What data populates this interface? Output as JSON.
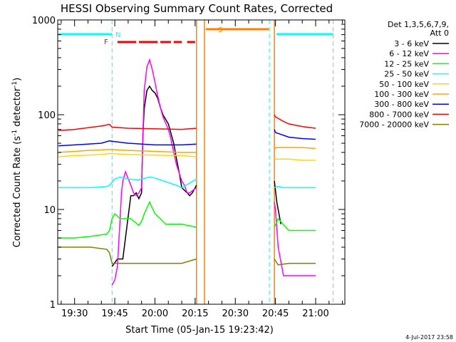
{
  "chart_data": {
    "type": "line",
    "title": "HESSI Observing Summary Count Rates, Corrected",
    "xlabel": "Start Time (05-Jan-15 19:23:42)",
    "ylabel": "Corrected Count Rate (s⁻¹ detector⁻¹)",
    "ylabel_parts": [
      "Corrected Count Rate (s",
      "-1",
      " detector",
      "-1",
      ")"
    ],
    "y_scale": "log",
    "ylim": [
      1,
      1000
    ],
    "xlim_minutes": [
      -6.3,
      100.9
    ],
    "x_ticks": [
      {
        "label": "19:30",
        "min": 0
      },
      {
        "label": "19:45",
        "min": 15
      },
      {
        "label": "20:00",
        "min": 30
      },
      {
        "label": "20:15",
        "min": 45
      },
      {
        "label": "20:30",
        "min": 60
      },
      {
        "label": "20:45",
        "min": 75
      },
      {
        "label": "21:00",
        "min": 90
      }
    ],
    "y_ticks": [
      {
        "label": "1",
        "value": 1
      },
      {
        "label": "10",
        "value": 10
      },
      {
        "label": "100",
        "value": 100
      },
      {
        "label": "1000",
        "value": 1000
      }
    ],
    "legend_header": [
      "Det 1,3,5,6,7,9,",
      "Att 0"
    ],
    "legend_position": "right",
    "series": [
      {
        "name": "3 - 6 keV",
        "color": "#000000",
        "x": [
          14,
          16,
          18,
          19,
          21,
          22,
          23,
          24,
          25,
          25.5,
          26,
          27,
          28,
          29,
          30,
          31,
          32,
          33,
          35,
          37,
          38,
          39,
          40,
          41,
          42,
          43,
          44,
          45.5,
          74.6,
          75.5,
          77
        ],
        "y": [
          2.5,
          3,
          3,
          5,
          14,
          14,
          15,
          13,
          15,
          60,
          115,
          180,
          200,
          180,
          170,
          150,
          120,
          100,
          80,
          50,
          35,
          25,
          17,
          16,
          15,
          14,
          15,
          18,
          20,
          12,
          7
        ]
      },
      {
        "name": "6 - 12 keV",
        "color": "#ff00ff",
        "x": [
          14,
          15,
          16,
          17,
          17.5,
          18,
          19,
          21,
          22,
          23,
          24,
          25,
          25.5,
          26,
          27,
          28,
          29,
          30,
          31,
          32,
          33,
          35,
          36,
          37,
          38,
          40,
          41,
          42,
          43,
          45.5,
          74.6,
          75,
          76,
          78,
          80,
          85,
          90
        ],
        "y": [
          1.6,
          1.8,
          2.5,
          8,
          15,
          20,
          25,
          18,
          15,
          14,
          15,
          17,
          60,
          180,
          320,
          380,
          300,
          220,
          160,
          120,
          95,
          70,
          55,
          40,
          30,
          20,
          18,
          15,
          15,
          17,
          12,
          10,
          4,
          2,
          2,
          2,
          2
        ]
      },
      {
        "name": "12 - 25 keV",
        "color": "#00ff00",
        "x": [
          -6,
          0,
          6,
          12,
          13,
          14,
          15,
          17,
          19,
          21,
          24,
          25,
          26,
          28,
          30,
          32,
          34,
          40,
          45.5,
          74.6,
          76,
          80,
          85,
          90
        ],
        "y": [
          5,
          5,
          5.2,
          5.5,
          6,
          8,
          9,
          8,
          8,
          8,
          6.8,
          7.5,
          9,
          12,
          9,
          8,
          7,
          7,
          6.5,
          6.5,
          8,
          6,
          6,
          6
        ]
      },
      {
        "name": "25 - 50 keV",
        "color": "#00ffff",
        "x": [
          -6,
          0,
          6,
          12,
          13,
          15,
          17,
          20,
          24,
          25,
          28,
          30,
          32,
          38,
          40,
          43,
          45.5,
          74.6,
          76,
          78,
          80,
          85,
          90
        ],
        "y": [
          17,
          17,
          17,
          17.5,
          18,
          21,
          22,
          21,
          20.5,
          21,
          22,
          21.5,
          20.5,
          18,
          17,
          19,
          21,
          17,
          17.5,
          17,
          17,
          17,
          17
        ]
      },
      {
        "name": "50 - 100 keV",
        "color": "#ffd700",
        "x": [
          -6,
          0,
          5,
          10,
          13,
          20,
          30,
          40,
          45.5,
          74.6,
          75,
          80,
          85,
          90
        ],
        "y": [
          36,
          37,
          37.5,
          38,
          39,
          38,
          37.5,
          37,
          36,
          35,
          34,
          34,
          33,
          33
        ]
      },
      {
        "name": "100 - 300 keV",
        "color": "#ffa500",
        "x": [
          -6,
          0,
          5,
          10,
          13,
          20,
          30,
          40,
          45.5,
          74.6,
          75,
          80,
          85,
          90
        ],
        "y": [
          40,
          41,
          42,
          42.5,
          43,
          42,
          41,
          40,
          40,
          42,
          45,
          45,
          45,
          44
        ]
      },
      {
        "name": "300 - 800 keV",
        "color": "#0000ff",
        "x": [
          -6,
          0,
          5,
          10,
          13,
          15,
          20,
          30,
          40,
          45.5,
          74.6,
          75,
          80,
          85,
          90
        ],
        "y": [
          47,
          48,
          49,
          50,
          53,
          52,
          50,
          48,
          48,
          49,
          70,
          65,
          58,
          56,
          55
        ]
      },
      {
        "name": "800 - 7000 keV",
        "color": "#ff0000",
        "x": [
          -6,
          0,
          5,
          10,
          13,
          14,
          20,
          30,
          40,
          45.5,
          74.6,
          75,
          78,
          80,
          85,
          90
        ],
        "y": [
          68,
          70,
          73,
          76,
          79,
          74,
          72,
          71,
          70,
          72,
          100,
          95,
          85,
          80,
          75,
          72
        ]
      },
      {
        "name": "7000 - 20000 keV",
        "color": "#808000",
        "x": [
          -6,
          0,
          6,
          12,
          13,
          14,
          20,
          30,
          40,
          45.5,
          74.6,
          76,
          80,
          85,
          90
        ],
        "y": [
          4,
          4,
          4,
          3.8,
          3.5,
          2.7,
          2.7,
          2.7,
          2.7,
          3,
          3,
          2.6,
          2.7,
          2.7,
          2.7
        ]
      }
    ],
    "annotations": [
      {
        "text": "N",
        "color": "#00ffff"
      },
      {
        "text": "F",
        "color": "#ff0000"
      },
      {
        "text": "S",
        "color": "#ff8000"
      }
    ],
    "flag_bars": [
      {
        "label": "N",
        "color": "#00ffff",
        "segments": [
          [
            -6,
            14
          ],
          [
            75.4,
            96.5
          ]
        ]
      },
      {
        "label": "F",
        "color": "#ff0000",
        "segments": [
          [
            16,
            23
          ],
          [
            24,
            31
          ],
          [
            32,
            36
          ],
          [
            37,
            40
          ],
          [
            42,
            45
          ]
        ]
      },
      {
        "label": "S",
        "color": "#ff8000",
        "segments": [
          [
            49,
            72.5
          ]
        ]
      }
    ],
    "dashed_markers": {
      "color": "#00ffff",
      "minutes": [
        14,
        72.7,
        96.5
      ]
    },
    "solid_markers": {
      "color": "#ff8000",
      "minutes": [
        45.5,
        48.5,
        74.6
      ]
    },
    "footer_date": "4-Jul-2017 23:58"
  }
}
